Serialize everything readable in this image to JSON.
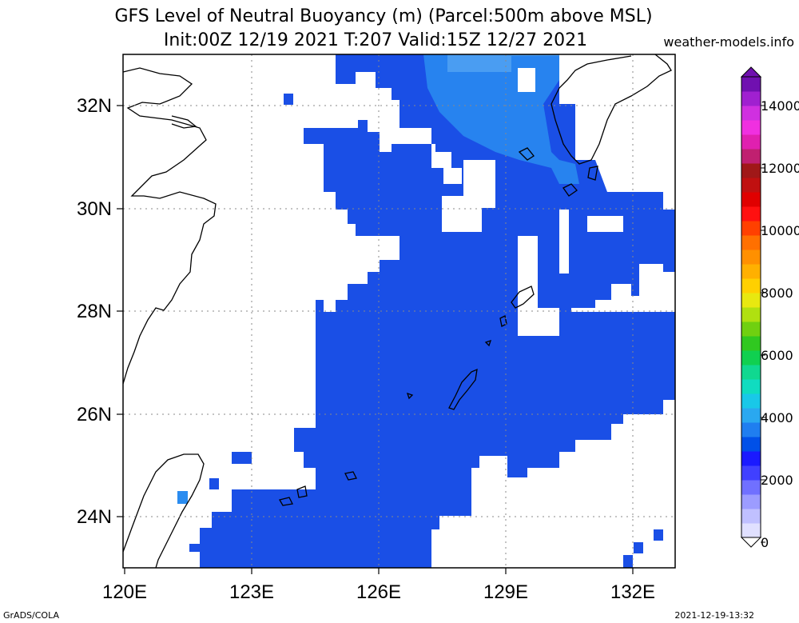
{
  "title_line1": "GFS Level of Neutral Buoyancy (m) (Parcel:500m above MSL)",
  "title_line2": "Init:00Z 12/19 2021 T:207 Valid:15Z 12/27 2021",
  "credit": "weather-models.info",
  "footer_left": "GrADS/COLA",
  "footer_right": "2021-12-19-13:32",
  "map": {
    "lon_range": [
      120,
      133
    ],
    "lat_range": [
      23,
      33
    ],
    "lon_ticks": [
      "120E",
      "123E",
      "126E",
      "129E",
      "132E"
    ],
    "lat_ticks": [
      "24N",
      "26N",
      "28N",
      "30N",
      "32N"
    ],
    "field_color_main": "#1a4fe6",
    "field_color_high": "#2a8cf0"
  },
  "colorbar": {
    "labels": [
      "0",
      "2000",
      "4000",
      "6000",
      "8000",
      "10000",
      "12000",
      "14000"
    ],
    "colors": [
      "#e0e0ff",
      "#c0c0ff",
      "#9c9cff",
      "#7070ff",
      "#4040ff",
      "#1a1aff",
      "#0050e8",
      "#1f7ef0",
      "#2aa8f0",
      "#19c8e8",
      "#10dcc0",
      "#10d890",
      "#10d050",
      "#30c820",
      "#70d010",
      "#b0e010",
      "#e8e810",
      "#ffd000",
      "#ffb000",
      "#ff9000",
      "#ff7000",
      "#ff4000",
      "#ff1010",
      "#e00000",
      "#c01010",
      "#a01818",
      "#c02070",
      "#e020b0",
      "#f030e0",
      "#d030e0",
      "#a020d0",
      "#7010b0"
    ]
  }
}
